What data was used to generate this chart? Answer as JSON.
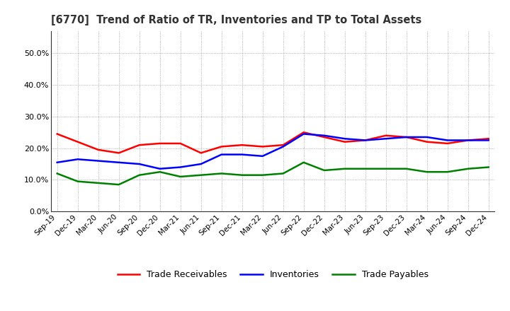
{
  "title": "[6770]  Trend of Ratio of TR, Inventories and TP to Total Assets",
  "x_labels": [
    "Sep-19",
    "Dec-19",
    "Mar-20",
    "Jun-20",
    "Sep-20",
    "Dec-20",
    "Mar-21",
    "Jun-21",
    "Sep-21",
    "Dec-21",
    "Mar-22",
    "Jun-22",
    "Sep-22",
    "Dec-22",
    "Mar-23",
    "Jun-23",
    "Sep-23",
    "Dec-23",
    "Mar-24",
    "Jun-24",
    "Sep-24",
    "Dec-24"
  ],
  "trade_receivables": [
    24.5,
    22.0,
    19.5,
    18.5,
    21.0,
    21.5,
    21.5,
    18.5,
    20.5,
    21.0,
    20.5,
    21.0,
    25.0,
    23.5,
    22.0,
    22.5,
    24.0,
    23.5,
    22.0,
    21.5,
    22.5,
    23.0
  ],
  "inventories": [
    15.5,
    16.5,
    16.0,
    15.5,
    15.0,
    13.5,
    14.0,
    15.0,
    18.0,
    18.0,
    17.5,
    20.5,
    24.5,
    24.0,
    23.0,
    22.5,
    23.0,
    23.5,
    23.5,
    22.5,
    22.5,
    22.5
  ],
  "trade_payables": [
    12.0,
    9.5,
    9.0,
    8.5,
    11.5,
    12.5,
    11.0,
    11.5,
    12.0,
    11.5,
    11.5,
    12.0,
    15.5,
    13.0,
    13.5,
    13.5,
    13.5,
    13.5,
    12.5,
    12.5,
    13.5,
    14.0
  ],
  "ylim": [
    0,
    57
  ],
  "yticks": [
    0.0,
    10.0,
    20.0,
    30.0,
    40.0,
    50.0
  ],
  "colors": {
    "trade_receivables": "#ff0000",
    "inventories": "#0000ff",
    "trade_payables": "#008000"
  },
  "legend_labels": [
    "Trade Receivables",
    "Inventories",
    "Trade Payables"
  ],
  "background_color": "#ffffff",
  "plot_background": "#ffffff",
  "grid_color": "#aaaaaa",
  "line_width": 1.8
}
